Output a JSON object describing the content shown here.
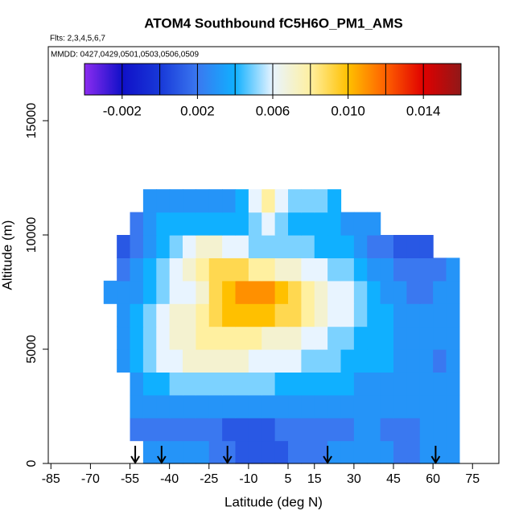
{
  "chart_data": {
    "type": "heatmap",
    "title": "ATOM4 Southbound fC5H6O_PM1_AMS",
    "subtitle": "Flts: 2,3,4,5,6,7",
    "annotation": "MMDD: 0427,0429,0501,0503,0506,0509",
    "xlabel": "Latitude (deg N)",
    "ylabel": "Altitude (m)",
    "xlim": [
      -86,
      85
    ],
    "ylim": [
      0,
      18240
    ],
    "xticks": [
      -85,
      -70,
      -55,
      -40,
      -25,
      -10,
      5,
      15,
      30,
      45,
      60,
      75
    ],
    "yticks": [
      0,
      5000,
      10000,
      15000
    ],
    "x_edges": [
      -65,
      -60,
      -55,
      -50,
      -45,
      -40,
      -35,
      -30,
      -25,
      -20,
      -15,
      -10,
      -5,
      0,
      5,
      10,
      15,
      20,
      25,
      30,
      35,
      40,
      45,
      50,
      55,
      60,
      65,
      70
    ],
    "y_edges": [
      0,
      1000,
      2000,
      3000,
      4000,
      5000,
      6000,
      7000,
      8000,
      9000,
      10000,
      11000,
      12000
    ],
    "z": [
      [
        null,
        null,
        null,
        0.003,
        0.003,
        0.003,
        0.003,
        0.003,
        0.002,
        0.002,
        0.001,
        0.001,
        0.001,
        0.001,
        0.002,
        0.002,
        0.002,
        0.003,
        0.003,
        0.003,
        0.003,
        0.003,
        0.002,
        0.002,
        0.003,
        0.003,
        0.003
      ],
      [
        null,
        null,
        0.002,
        0.002,
        0.002,
        0.002,
        0.002,
        0.002,
        0.002,
        0.001,
        0.001,
        0.001,
        0.001,
        0.002,
        0.002,
        0.002,
        0.002,
        0.002,
        0.002,
        0.003,
        0.003,
        0.002,
        0.002,
        0.002,
        0.003,
        0.003,
        0.003
      ],
      [
        null,
        null,
        0.003,
        0.003,
        0.003,
        0.003,
        0.003,
        0.003,
        0.003,
        0.003,
        0.003,
        0.003,
        0.003,
        0.003,
        0.003,
        0.003,
        0.003,
        0.003,
        0.003,
        0.003,
        0.003,
        0.003,
        0.003,
        0.003,
        0.003,
        0.003,
        0.003
      ],
      [
        null,
        null,
        0.003,
        0.004,
        0.004,
        0.005,
        0.005,
        0.005,
        0.005,
        0.005,
        0.005,
        0.005,
        0.005,
        0.004,
        0.004,
        0.004,
        0.004,
        0.004,
        0.004,
        0.003,
        0.003,
        0.003,
        0.003,
        0.003,
        0.003,
        0.003,
        0.003
      ],
      [
        null,
        0.003,
        0.004,
        0.005,
        0.006,
        0.006,
        0.007,
        0.007,
        0.007,
        0.007,
        0.007,
        0.006,
        0.006,
        0.006,
        0.006,
        0.005,
        0.005,
        0.005,
        0.004,
        0.004,
        0.004,
        0.004,
        0.003,
        0.003,
        0.003,
        0.002,
        0.003
      ],
      [
        null,
        0.003,
        0.004,
        0.005,
        0.006,
        0.007,
        0.007,
        0.008,
        0.008,
        0.008,
        0.008,
        0.008,
        0.007,
        0.007,
        0.007,
        0.006,
        0.006,
        0.005,
        0.005,
        0.004,
        0.004,
        0.004,
        0.003,
        0.003,
        0.003,
        0.003,
        0.003
      ],
      [
        null,
        0.003,
        0.004,
        0.005,
        0.006,
        0.007,
        0.007,
        0.008,
        0.009,
        0.01,
        0.01,
        0.01,
        0.01,
        0.009,
        0.009,
        0.008,
        0.007,
        0.006,
        0.006,
        0.005,
        0.004,
        0.004,
        0.003,
        0.003,
        0.003,
        0.003,
        0.003
      ],
      [
        0.003,
        0.003,
        0.003,
        0.004,
        0.005,
        0.006,
        0.006,
        0.007,
        0.009,
        0.01,
        0.011,
        0.011,
        0.011,
        0.01,
        0.009,
        0.008,
        0.007,
        0.006,
        0.006,
        0.005,
        0.004,
        0.003,
        0.003,
        0.002,
        0.002,
        0.003,
        0.003
      ],
      [
        null,
        0.002,
        0.003,
        0.004,
        0.005,
        0.006,
        0.007,
        0.008,
        0.009,
        0.009,
        0.009,
        0.008,
        0.008,
        0.007,
        0.007,
        0.006,
        0.006,
        0.005,
        0.005,
        0.004,
        0.003,
        0.003,
        0.002,
        0.002,
        0.002,
        0.002,
        0.003
      ],
      [
        null,
        0.001,
        0.002,
        0.003,
        0.004,
        0.005,
        0.006,
        0.007,
        0.007,
        0.006,
        0.006,
        0.005,
        0.005,
        0.005,
        0.005,
        0.005,
        0.004,
        0.004,
        0.004,
        0.003,
        0.002,
        0.002,
        0.001,
        0.001,
        0.001,
        null,
        null
      ],
      [
        null,
        null,
        0.002,
        0.003,
        0.004,
        0.004,
        0.004,
        0.004,
        0.004,
        0.004,
        0.004,
        0.005,
        0.006,
        0.005,
        0.004,
        0.004,
        0.004,
        0.004,
        0.003,
        0.003,
        0.003,
        null,
        null,
        null,
        null,
        null,
        null
      ],
      [
        null,
        null,
        null,
        0.003,
        0.003,
        0.003,
        0.003,
        0.003,
        0.003,
        0.003,
        0.004,
        0.006,
        0.008,
        0.006,
        0.005,
        0.005,
        0.005,
        0.004,
        null,
        null,
        null,
        null,
        null,
        null,
        null,
        null,
        null
      ]
    ],
    "colorbar_levels": [
      -0.004,
      -0.002,
      0,
      0.002,
      0.004,
      0.006,
      0.008,
      0.01,
      0.012,
      0.014,
      0.016
    ],
    "colorbar_colors": [
      "#8c2cf0",
      "#1010c8",
      "#1838d8",
      "#3a78f0",
      "#10b0ff",
      "#e8f4ff",
      "#fff0a0",
      "#ffc000",
      "#ff6000",
      "#e00000",
      "#901818"
    ],
    "colorbar_ticks": [
      -0.002,
      0.002,
      0.006,
      {
        "value": 0.01,
        "label": "0.010"
      },
      0.014
    ],
    "arrows_x": [
      -53,
      -43,
      -18,
      20,
      61
    ]
  }
}
